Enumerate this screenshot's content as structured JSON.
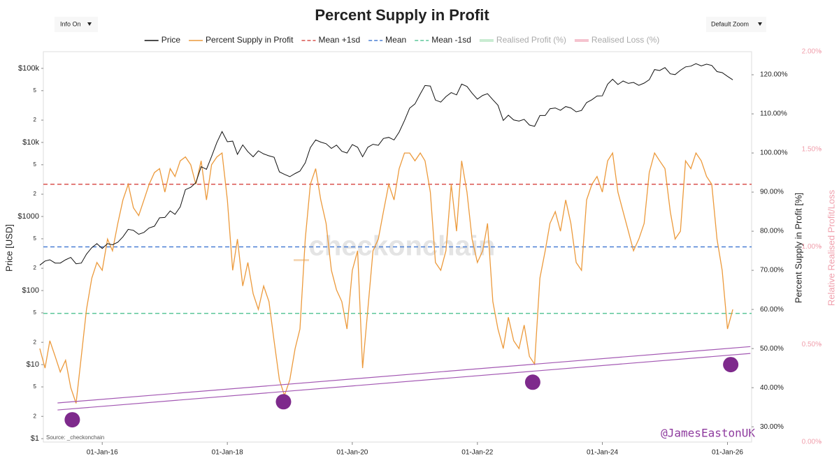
{
  "chart_data": {
    "type": "line",
    "title": "Percent Supply in Profit",
    "controls": {
      "info": "Info On",
      "zoom": "Default Zoom"
    },
    "y_label": "Price [USD]",
    "y2_label": "Percent Supply in Profit [%]",
    "y3_label": "Relative Realised Profit/Loss",
    "source": "Source: _checkonchain",
    "watermark": "checkonchain",
    "signature": "@JamesEastonUK",
    "xlim": [
      "2015-01-22",
      "2026-05-22"
    ],
    "xticks": [
      {
        "value": "2016-01-01",
        "label": "01-Jan-16"
      },
      {
        "value": "2018-01-01",
        "label": "01-Jan-18"
      },
      {
        "value": "2020-01-01",
        "label": "01-Jan-20"
      },
      {
        "value": "2022-01-01",
        "label": "01-Jan-22"
      },
      {
        "value": "2024-01-01",
        "label": "01-Jan-24"
      },
      {
        "value": "2026-01-01",
        "label": "01-Jan-26"
      }
    ],
    "log_y": true,
    "ylim": [
      0.9,
      168000
    ],
    "yticks": [
      {
        "value": 1,
        "label": "$1"
      },
      2,
      5,
      {
        "value": 10,
        "label": "$10"
      },
      {
        "value": 20,
        "label": "2"
      },
      {
        "value": 50,
        "label": "5"
      },
      {
        "value": 100,
        "label": "$100"
      },
      {
        "value": 200,
        "label": "2"
      },
      {
        "value": 500,
        "label": "5"
      },
      {
        "value": 1000,
        "label": "$1000"
      },
      {
        "value": 2000,
        "label": "2"
      },
      {
        "value": 5000,
        "label": "5"
      },
      {
        "value": 10000,
        "label": "$10k"
      },
      {
        "value": 20000,
        "label": "2"
      },
      {
        "value": 50000,
        "label": "5"
      },
      {
        "value": 100000,
        "label": "$100k"
      }
    ],
    "y2lim": [
      26.1,
      125.9
    ],
    "y2ticks": [
      {
        "value": 30,
        "label": "30.00%"
      },
      {
        "value": 40,
        "label": "40.00%"
      },
      {
        "value": 50,
        "label": "50.00%"
      },
      {
        "value": 60,
        "label": "60.00%"
      },
      {
        "value": 70,
        "label": "70.00%"
      },
      {
        "value": 80,
        "label": "80.00%"
      },
      {
        "value": 90,
        "label": "90.00%"
      },
      {
        "value": 100,
        "label": "100.00%"
      },
      {
        "value": 110,
        "label": "110.00%"
      },
      {
        "value": 120,
        "label": "120.00%"
      }
    ],
    "y3lim": [
      0,
      2
    ],
    "y3ticks": [
      {
        "value": 0,
        "label": "0.00%"
      },
      {
        "value": 0.5,
        "label": "0.50%"
      },
      {
        "value": 1,
        "label": "1.00%"
      },
      {
        "value": 1.5,
        "label": "1.50%"
      },
      {
        "value": 2,
        "label": "2.00%"
      }
    ],
    "x": [
      "2015-01-01",
      "2015-02-01",
      "2015-03-01",
      "2015-04-01",
      "2015-05-01",
      "2015-06-01",
      "2015-07-01",
      "2015-08-01",
      "2015-09-01",
      "2015-10-01",
      "2015-11-01",
      "2015-12-01",
      "2016-01-01",
      "2016-02-01",
      "2016-03-01",
      "2016-04-01",
      "2016-05-01",
      "2016-06-01",
      "2016-07-01",
      "2016-08-01",
      "2016-09-01",
      "2016-10-01",
      "2016-11-01",
      "2016-12-01",
      "2017-01-01",
      "2017-02-01",
      "2017-03-01",
      "2017-04-01",
      "2017-05-01",
      "2017-06-01",
      "2017-07-01",
      "2017-08-01",
      "2017-09-01",
      "2017-10-01",
      "2017-11-01",
      "2017-12-01",
      "2018-01-01",
      "2018-02-01",
      "2018-03-01",
      "2018-04-01",
      "2018-05-01",
      "2018-06-01",
      "2018-07-01",
      "2018-08-01",
      "2018-09-01",
      "2018-10-01",
      "2018-11-01",
      "2018-12-01",
      "2019-01-01",
      "2019-02-01",
      "2019-03-01",
      "2019-04-01",
      "2019-05-01",
      "2019-06-01",
      "2019-07-01",
      "2019-08-01",
      "2019-09-01",
      "2019-10-01",
      "2019-11-01",
      "2019-12-01",
      "2020-01-01",
      "2020-02-01",
      "2020-03-01",
      "2020-04-01",
      "2020-05-01",
      "2020-06-01",
      "2020-07-01",
      "2020-08-01",
      "2020-09-01",
      "2020-10-01",
      "2020-11-01",
      "2020-12-01",
      "2021-01-01",
      "2021-02-01",
      "2021-03-01",
      "2021-04-01",
      "2021-05-01",
      "2021-06-01",
      "2021-07-01",
      "2021-08-01",
      "2021-09-01",
      "2021-10-01",
      "2021-11-01",
      "2021-12-01",
      "2022-01-01",
      "2022-02-01",
      "2022-03-01",
      "2022-04-01",
      "2022-05-01",
      "2022-06-01",
      "2022-07-01",
      "2022-08-01",
      "2022-09-01",
      "2022-10-01",
      "2022-11-01",
      "2022-12-01",
      "2023-01-01",
      "2023-02-01",
      "2023-03-01",
      "2023-04-01",
      "2023-05-01",
      "2023-06-01",
      "2023-07-01",
      "2023-08-01",
      "2023-09-01",
      "2023-10-01",
      "2023-11-01",
      "2023-12-01",
      "2024-01-01",
      "2024-02-01",
      "2024-03-01",
      "2024-04-01",
      "2024-05-01",
      "2024-06-01",
      "2024-07-01",
      "2024-08-01",
      "2024-09-01",
      "2024-10-01",
      "2024-11-01",
      "2024-12-01",
      "2025-01-01",
      "2025-02-01",
      "2025-03-01",
      "2025-04-01",
      "2025-05-01",
      "2025-06-01",
      "2025-07-01",
      "2025-08-01",
      "2025-09-01",
      "2025-10-01",
      "2025-11-01",
      "2025-12-01",
      "2026-01-01",
      "2026-02-01"
    ],
    "series": [
      {
        "name": "Price",
        "color": "#111111",
        "axis": "y",
        "values": [
          220,
          250,
          260,
          235,
          235,
          260,
          280,
          230,
          235,
          310,
          380,
          430,
          370,
          430,
          415,
          450,
          530,
          670,
          650,
          575,
          610,
          700,
          740,
          960,
          970,
          1190,
          1070,
          1350,
          2300,
          2480,
          2860,
          4700,
          4340,
          6450,
          10000,
          14000,
          10200,
          10400,
          6900,
          9250,
          7500,
          6400,
          7700,
          7000,
          6600,
          6300,
          4000,
          3700,
          3450,
          3800,
          4100,
          5300,
          8500,
          10800,
          10100,
          9600,
          8300,
          9200,
          7600,
          7200,
          9350,
          8600,
          6400,
          8600,
          9450,
          9140,
          11300,
          11700,
          10800,
          13800,
          19700,
          29000,
          33100,
          45200,
          58800,
          57700,
          37300,
          35000,
          41500,
          47100,
          43800,
          61300,
          57000,
          46300,
          38500,
          43200,
          45500,
          37700,
          31800,
          19800,
          23300,
          20100,
          19400,
          20500,
          17200,
          16500,
          23100,
          23100,
          28500,
          29200,
          27200,
          30500,
          29200,
          25900,
          27000,
          34500,
          37700,
          42300,
          42600,
          61200,
          71300,
          60600,
          67500,
          62700,
          64600,
          59000,
          63300,
          70200,
          96400,
          93400,
          102400,
          84400,
          82500,
          94200,
          104600,
          107100,
          115700,
          108200,
          114000,
          109500,
          90400,
          87500,
          78000,
          70000
        ]
      },
      {
        "name": "Percent Supply in Profit",
        "color": "#ec9a3c",
        "axis": "y2",
        "values": [
          50,
          45,
          52,
          48,
          44,
          47,
          40,
          36,
          48,
          60,
          68,
          72,
          70,
          78,
          75,
          82,
          88,
          92,
          86,
          84,
          88,
          92,
          95,
          96,
          90,
          96,
          94,
          98,
          99,
          97,
          92,
          98,
          88,
          97,
          99,
          100,
          88,
          70,
          78,
          66,
          72,
          64,
          60,
          66,
          62,
          52,
          42,
          38,
          42,
          50,
          55,
          78,
          92,
          96,
          88,
          82,
          70,
          65,
          62,
          55,
          70,
          75,
          45,
          60,
          75,
          78,
          85,
          92,
          88,
          96,
          100,
          100,
          98,
          100,
          98,
          90,
          72,
          70,
          75,
          92,
          80,
          98,
          90,
          78,
          72,
          75,
          82,
          62,
          55,
          50,
          58,
          52,
          50,
          56,
          48,
          46,
          68,
          75,
          82,
          85,
          80,
          88,
          82,
          72,
          70,
          88,
          92,
          94,
          90,
          98,
          100,
          90,
          85,
          80,
          75,
          78,
          82,
          95,
          100,
          98,
          96,
          85,
          78,
          80,
          98,
          96,
          100,
          98,
          94,
          92,
          78,
          70,
          55,
          60
        ]
      }
    ],
    "hlines": [
      {
        "name": "Mean +1sd",
        "color": "#d9534f",
        "axis": "y2",
        "value": 92
      },
      {
        "name": "Mean",
        "color": "#4a7fd4",
        "axis": "y2",
        "value": 76
      },
      {
        "name": "Mean -1sd",
        "color": "#5cc79a",
        "axis": "y2",
        "value": 59
      }
    ],
    "inactive_series": [
      {
        "name": "Realised Profit (%)",
        "color": "#c9ecd2"
      },
      {
        "name": "Realised Loss (%)",
        "color": "#f5c3cf"
      }
    ],
    "trend_lines": [
      {
        "color": "#a358b3",
        "axis": "y2",
        "x": [
          "2015-04-15",
          "2026-05-15"
        ],
        "values": [
          36.1,
          50.5
        ]
      },
      {
        "color": "#a358b3",
        "axis": "y2",
        "x": [
          "2015-04-15",
          "2026-05-15"
        ],
        "values": [
          34.3,
          48.75
        ]
      }
    ],
    "markers": {
      "color": "#7e2a8c",
      "axis": "y2",
      "x": [
        "2015-07-10",
        "2018-11-25",
        "2022-11-20",
        "2026-01-20"
      ],
      "values": [
        31.8,
        36.4,
        41.4,
        45.9
      ]
    }
  }
}
